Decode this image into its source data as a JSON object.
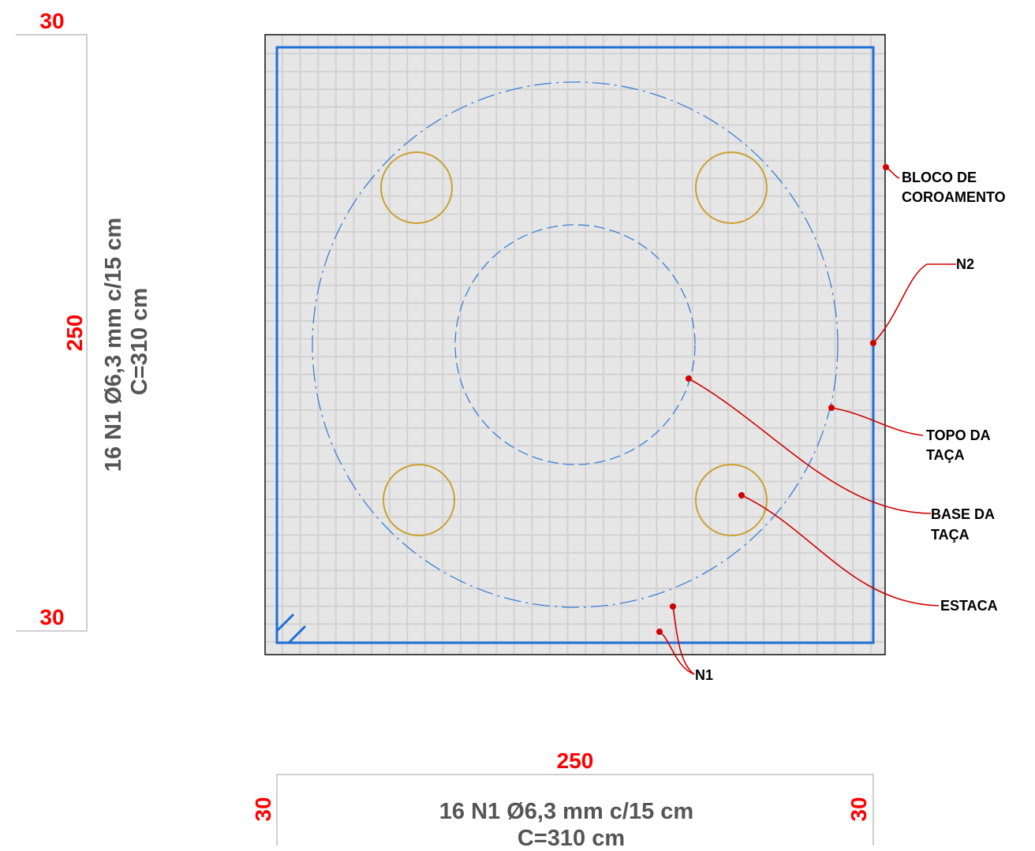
{
  "dimensions": {
    "left": {
      "top_cover": "30",
      "span": "250",
      "bottom_cover": "30",
      "bar_line1": "16 N1 Ø6,3 mm c/15 cm",
      "bar_line2": "C=310 cm"
    },
    "bottom": {
      "left_cover": "30",
      "span": "250",
      "right_cover": "30",
      "bar_line1": "16 N1 Ø6,3 mm c/15 cm",
      "bar_line2": "C=310 cm"
    }
  },
  "labels": {
    "bloco_line1": "BLOCO DE",
    "bloco_line2": "COROAMENTO",
    "n2": "N2",
    "topo_line1": "TOPO DA",
    "topo_line2": "TAÇA",
    "base_line1": "BASE DA",
    "base_line2": "TAÇA",
    "estaca": "ESTACA",
    "n1": "N1"
  },
  "colors": {
    "concrete": "#e6e6e6",
    "rebar": "#1f6fd6",
    "pile": "#c9a033",
    "leader": "#d00000",
    "dimension_text": "#ff0000",
    "bar_text": "#555555"
  }
}
